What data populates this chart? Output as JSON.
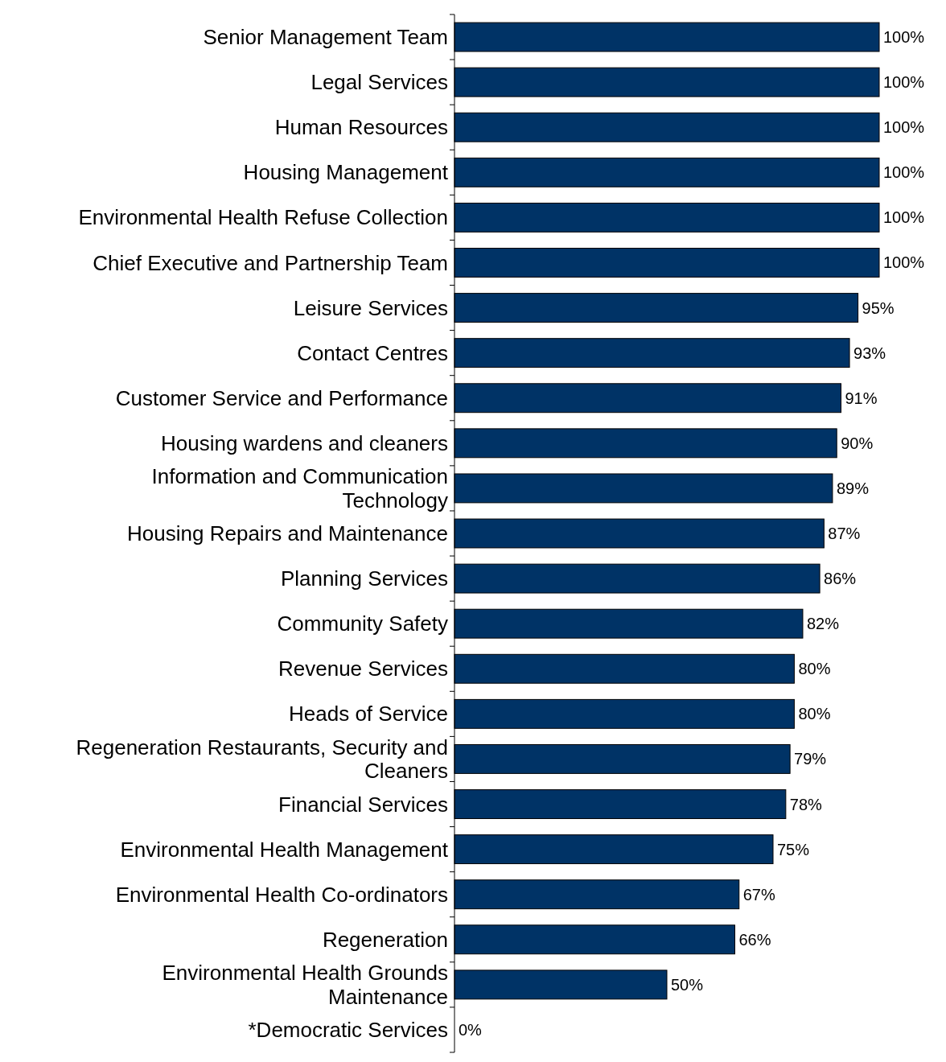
{
  "chart_data": {
    "type": "bar",
    "orientation": "horizontal",
    "categories": [
      "Senior Management Team",
      "Legal Services",
      "Human Resources",
      "Housing Management",
      "Environmental Health Refuse Collection",
      "Chief Executive and Partnership Team",
      "Leisure Services",
      "Contact Centres",
      "Customer Service and Performance",
      "Housing wardens and cleaners",
      "Information and Communication Technology",
      "Housing Repairs and Maintenance",
      "Planning Services",
      "Community Safety",
      "Revenue Services",
      "Heads of Service",
      "Regeneration Restaurants, Security and Cleaners",
      "Financial Services",
      "Environmental Health Management",
      "Environmental Health Co-ordinators",
      "Regeneration",
      "Environmental Health Grounds Maintenance",
      "*Democratic Services"
    ],
    "values": [
      100,
      100,
      100,
      100,
      100,
      100,
      95,
      93,
      91,
      90,
      89,
      87,
      86,
      82,
      80,
      80,
      79,
      78,
      75,
      67,
      66,
      50,
      0
    ],
    "value_labels": [
      "100%",
      "100%",
      "100%",
      "100%",
      "100%",
      "100%",
      "95%",
      "93%",
      "91%",
      "90%",
      "89%",
      "87%",
      "86%",
      "82%",
      "80%",
      "80%",
      "79%",
      "78%",
      "75%",
      "67%",
      "66%",
      "50%",
      "0%"
    ],
    "color": "#003366",
    "xlim": [
      0,
      100
    ],
    "tick_labels": "y"
  }
}
